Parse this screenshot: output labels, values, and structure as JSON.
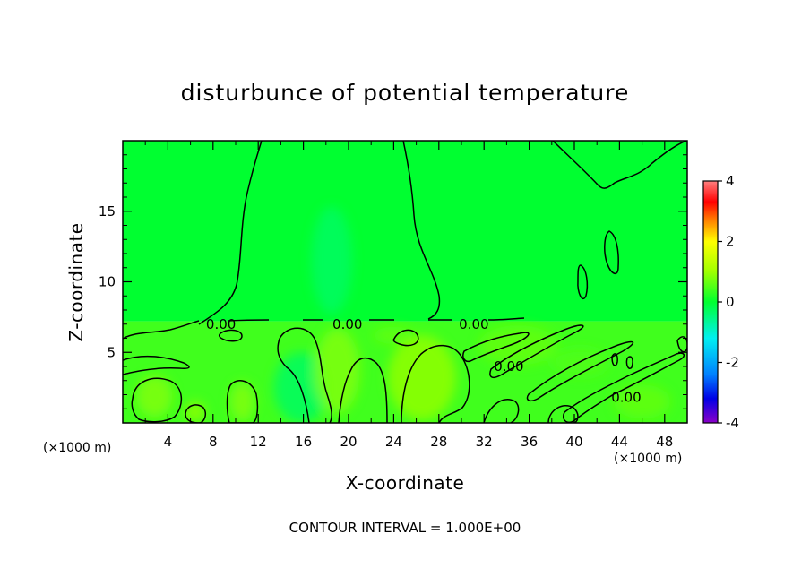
{
  "chart_data": {
    "type": "heatmap",
    "title": "disturbunce of potential temperature",
    "xlabel": "X-coordinate",
    "ylabel": "Z-coordinate",
    "x_unit_label": "(×1000 m)",
    "x_unit_label_right": "(×1000 m)",
    "footer_note": "CONTOUR INTERVAL = 1.000E+00",
    "xlim": [
      0,
      50
    ],
    "ylim": [
      0,
      20
    ],
    "x_ticks": [
      4,
      8,
      12,
      16,
      20,
      24,
      28,
      32,
      36,
      40,
      44,
      48
    ],
    "x_tick_labels": [
      "4",
      "8",
      "12",
      "16",
      "20",
      "24",
      "28",
      "32",
      "36",
      "40",
      "44",
      "48"
    ],
    "y_ticks": [
      5,
      10,
      15
    ],
    "y_tick_labels": [
      "5",
      "10",
      "15"
    ],
    "colorbar": {
      "min": -4,
      "max": 4,
      "ticks": [
        4,
        2,
        0,
        -2,
        -4
      ],
      "tick_labels": [
        "4",
        "2",
        "0",
        "-2",
        "-4"
      ],
      "stops": [
        {
          "value": -4,
          "color": "#8b00c8"
        },
        {
          "value": -3.2,
          "color": "#0000e6"
        },
        {
          "value": -2.4,
          "color": "#0080ff"
        },
        {
          "value": -1.2,
          "color": "#00f0f0"
        },
        {
          "value": 0,
          "color": "#00ff30"
        },
        {
          "value": 1.0,
          "color": "#a0ff00"
        },
        {
          "value": 2.0,
          "color": "#ffff00"
        },
        {
          "value": 2.7,
          "color": "#ff8000"
        },
        {
          "value": 3.3,
          "color": "#ff0000"
        },
        {
          "value": 4,
          "color": "#ff8080"
        }
      ]
    },
    "contour_labels": [
      {
        "text": "0.00",
        "x": 8.7,
        "z": 7.0
      },
      {
        "text": "0.00",
        "x": 19.9,
        "z": 7.0
      },
      {
        "text": "0.00",
        "x": 31.1,
        "z": 7.0
      },
      {
        "text": "0.00",
        "x": 34.2,
        "z": 4.0
      },
      {
        "text": "0.00",
        "x": 44.6,
        "z": 1.8
      }
    ],
    "regions": [
      {
        "name": "upper-background",
        "value": 0.0,
        "x0": 0,
        "x1": 50,
        "z0": 7.2,
        "z1": 20
      },
      {
        "name": "lower-background",
        "value": 0.4,
        "x0": 0,
        "x1": 50,
        "z0": 0,
        "z1": 7.2
      }
    ],
    "anomalies": [
      {
        "cx": 18.5,
        "cz": 11.5,
        "rx": 1.8,
        "rz": 3.8,
        "value": -0.3
      },
      {
        "cx": 2.8,
        "cz": 1.9,
        "rx": 1.6,
        "rz": 1.5,
        "value": 0.8
      },
      {
        "cx": 6.4,
        "cz": 0.8,
        "rx": 0.9,
        "rz": 0.7,
        "value": 0.9
      },
      {
        "cx": 10.6,
        "cz": 1.5,
        "rx": 1.1,
        "rz": 1.4,
        "value": 0.8
      },
      {
        "cx": 15.8,
        "cz": 2.5,
        "rx": 2.4,
        "rz": 2.5,
        "value": -0.3
      },
      {
        "cx": 19.0,
        "cz": 3.7,
        "rx": 2.0,
        "rz": 3.0,
        "value": 0.8
      },
      {
        "cx": 26.5,
        "cz": 3.2,
        "rx": 3.0,
        "rz": 3.0,
        "value": 0.9
      },
      {
        "cx": 24.0,
        "cz": 6.2,
        "rx": 1.8,
        "rz": 0.6,
        "value": 0.6
      },
      {
        "cx": 35.0,
        "cz": 5.5,
        "rx": 3.5,
        "rz": 1.4,
        "value": 0.6
      },
      {
        "cx": 40.5,
        "cz": 4.3,
        "rx": 2.5,
        "rz": 1.0,
        "value": 0.5
      },
      {
        "cx": 46.0,
        "cz": 1.5,
        "rx": 2.5,
        "rz": 1.2,
        "value": 0.6
      }
    ]
  }
}
